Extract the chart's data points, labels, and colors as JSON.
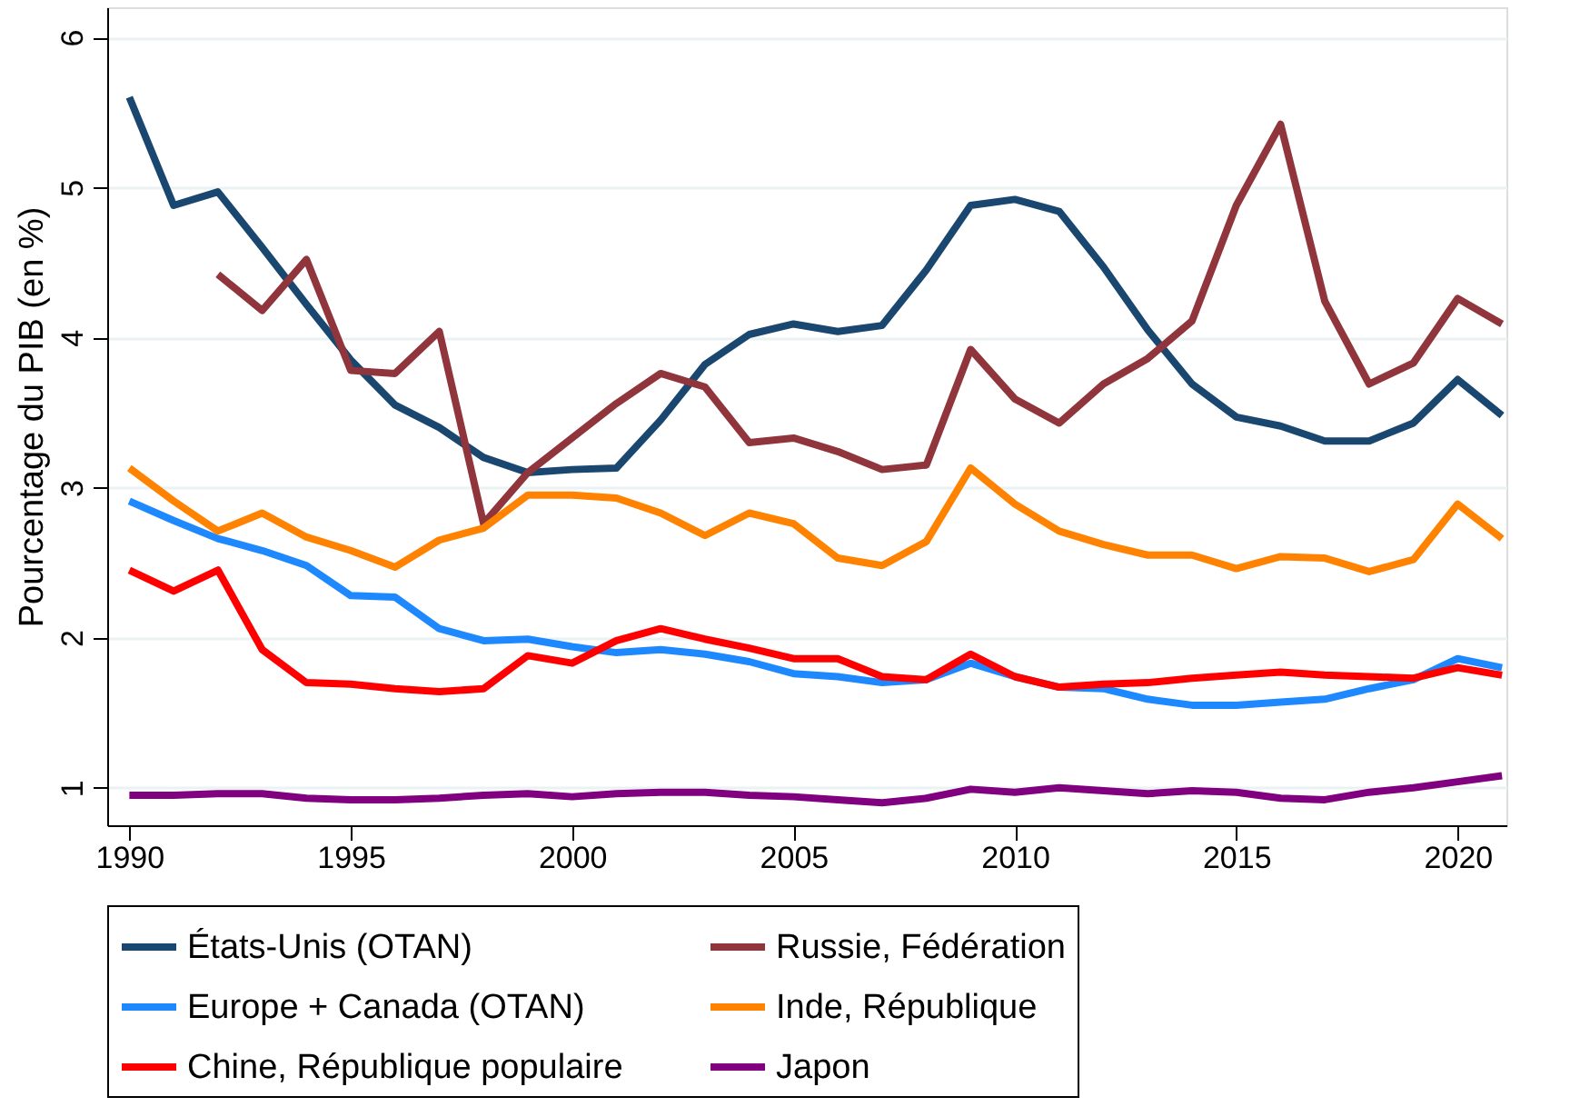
{
  "chart_data": {
    "type": "line",
    "ylabel": "Pourcentage du PIB (en %)",
    "x": [
      1990,
      1991,
      1992,
      1993,
      1994,
      1995,
      1996,
      1997,
      1998,
      1999,
      2000,
      2001,
      2002,
      2003,
      2004,
      2005,
      2006,
      2007,
      2008,
      2009,
      2010,
      2011,
      2012,
      2013,
      2014,
      2015,
      2016,
      2017,
      2018,
      2019,
      2020,
      2021
    ],
    "xlim": [
      1989.5,
      2021.1
    ],
    "xticks": [
      1990,
      1995,
      2000,
      2005,
      2010,
      2015,
      2020
    ],
    "ylim": [
      0.75,
      6.2
    ],
    "yticks": [
      1,
      2,
      3,
      4,
      5,
      6
    ],
    "grid": "y",
    "legend": "bottom",
    "line_style": "solid",
    "series": [
      {
        "name": "États-Unis (OTAN)",
        "color": "#1a476f",
        "values": [
          5.6,
          4.88,
          4.97,
          4.6,
          4.22,
          3.85,
          3.55,
          3.4,
          3.2,
          3.1,
          3.12,
          3.13,
          3.45,
          3.82,
          4.02,
          4.09,
          4.04,
          4.08,
          4.45,
          4.88,
          4.92,
          4.84,
          4.47,
          4.05,
          3.69,
          3.47,
          3.41,
          3.31,
          3.31,
          3.43,
          3.72,
          3.48
        ]
      },
      {
        "name": "Europe + Canada (OTAN)",
        "color": "#1e88ff",
        "values": [
          2.91,
          2.78,
          2.66,
          2.58,
          2.48,
          2.28,
          2.27,
          2.06,
          1.98,
          1.99,
          1.94,
          1.9,
          1.92,
          1.89,
          1.84,
          1.76,
          1.74,
          1.7,
          1.72,
          1.83,
          1.74,
          1.67,
          1.66,
          1.59,
          1.55,
          1.55,
          1.57,
          1.59,
          1.66,
          1.72,
          1.86,
          1.8
        ]
      },
      {
        "name": "Chine, République populaire",
        "color": "#ff0000",
        "values": [
          2.45,
          2.31,
          2.45,
          1.92,
          1.7,
          1.69,
          1.66,
          1.64,
          1.66,
          1.88,
          1.83,
          1.98,
          2.06,
          1.99,
          1.93,
          1.86,
          1.86,
          1.74,
          1.72,
          1.89,
          1.74,
          1.67,
          1.69,
          1.7,
          1.73,
          1.75,
          1.77,
          1.75,
          1.74,
          1.73,
          1.8,
          1.75
        ]
      },
      {
        "name": "Russie, Fédération",
        "color": "#90353b",
        "x": [
          1992,
          1993,
          1994,
          1995,
          1996,
          1997,
          1998,
          1999,
          2000,
          2001,
          2002,
          2003,
          2004,
          2005,
          2006,
          2007,
          2008,
          2009,
          2010,
          2011,
          2012,
          2013,
          2014,
          2015,
          2016,
          2017,
          2018,
          2019,
          2020,
          2021
        ],
        "values": [
          4.42,
          4.18,
          4.52,
          3.78,
          3.76,
          4.04,
          2.76,
          3.1,
          3.33,
          3.56,
          3.76,
          3.67,
          3.3,
          3.33,
          3.24,
          3.12,
          3.15,
          3.92,
          3.59,
          3.43,
          3.69,
          3.86,
          4.11,
          4.88,
          5.42,
          4.24,
          3.69,
          3.83,
          4.26,
          4.09
        ]
      },
      {
        "name": "Inde, République",
        "color": "#ff8200",
        "values": [
          3.13,
          2.91,
          2.71,
          2.83,
          2.67,
          2.58,
          2.47,
          2.65,
          2.73,
          2.95,
          2.95,
          2.93,
          2.83,
          2.68,
          2.83,
          2.76,
          2.53,
          2.48,
          2.64,
          3.13,
          2.89,
          2.71,
          2.62,
          2.55,
          2.55,
          2.46,
          2.54,
          2.53,
          2.44,
          2.52,
          2.89,
          2.66
        ]
      },
      {
        "name": "Japon",
        "color": "#800080",
        "values": [
          0.95,
          0.95,
          0.96,
          0.96,
          0.93,
          0.92,
          0.92,
          0.93,
          0.95,
          0.96,
          0.94,
          0.96,
          0.97,
          0.97,
          0.95,
          0.94,
          0.92,
          0.9,
          0.93,
          0.99,
          0.97,
          1.0,
          0.98,
          0.96,
          0.98,
          0.97,
          0.93,
          0.92,
          0.97,
          1.0,
          1.04,
          1.08
        ]
      }
    ]
  }
}
